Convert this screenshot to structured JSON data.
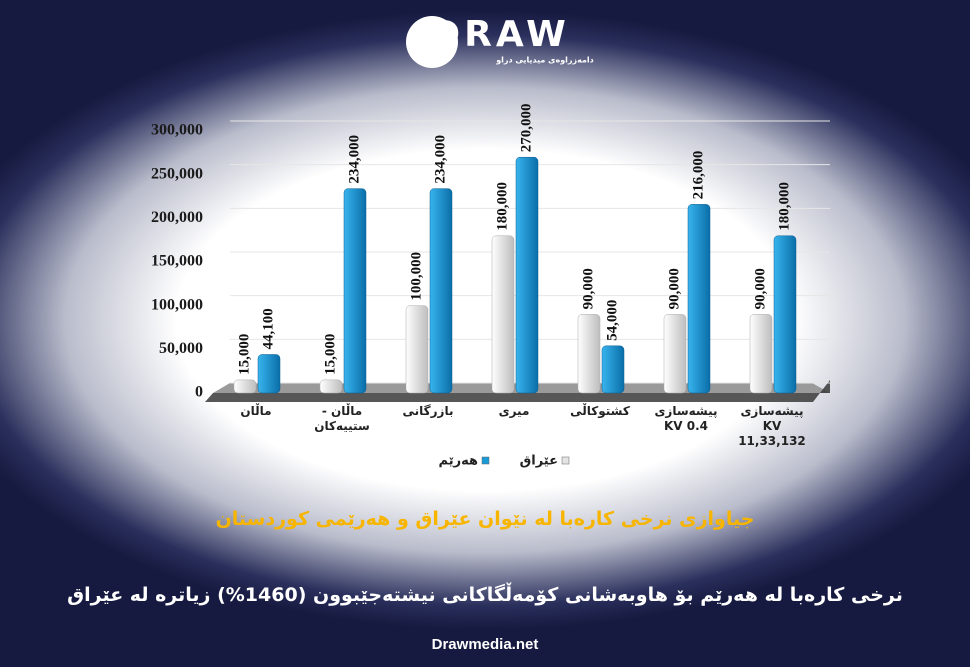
{
  "branding": {
    "logo": "DRAW",
    "tagline": "دامەزراوەی میدیایی دراو",
    "footer": "Drawmedia.net"
  },
  "chart_data": {
    "type": "bar",
    "title": "جیاوازی نرخی کارەبا لە نێوان عێراق و هەرێمی کوردستان",
    "subtitle": "نرخی کارەبا لە هەرێم بۆ هاوبەشانی کۆمەڵگاکانی نیشتەجێبوون (1460%) زیاترە لە عێراق",
    "categories": [
      "ماڵان",
      "ماڵان - ستییەکان",
      "بازرگانی",
      "میری",
      "کشتوکاڵی",
      "پیشەسازی KV 0.4",
      "پیشەسازی KV 11,33,132"
    ],
    "series": [
      {
        "name": "عێراق",
        "color": "#e4e4e4",
        "values": [
          15000,
          15000,
          100000,
          180000,
          90000,
          90000,
          90000
        ],
        "value_labels": [
          "15,000",
          "15,000",
          "100,000",
          "180,000",
          "90,000",
          "90,000",
          "90,000"
        ]
      },
      {
        "name": "هەرێم",
        "color": "#1b9ad8",
        "values": [
          44100,
          234000,
          234000,
          270000,
          54000,
          216000,
          180000
        ],
        "value_labels": [
          "44,100",
          "234,000",
          "234,000",
          "270,000",
          "54,000",
          "216,000",
          "180,000"
        ]
      }
    ],
    "ylim": [
      0,
      300000
    ],
    "yticks": [
      {
        "value": 0,
        "label": "0"
      },
      {
        "value": 50000,
        "label": "50,000"
      },
      {
        "value": 100000,
        "label": "100,000"
      },
      {
        "value": 150000,
        "label": "150,000"
      },
      {
        "value": 200000,
        "label": "200,000"
      },
      {
        "value": 250000,
        "label": "250,000"
      },
      {
        "value": 300000,
        "label": "300,000"
      }
    ],
    "grid": true
  }
}
